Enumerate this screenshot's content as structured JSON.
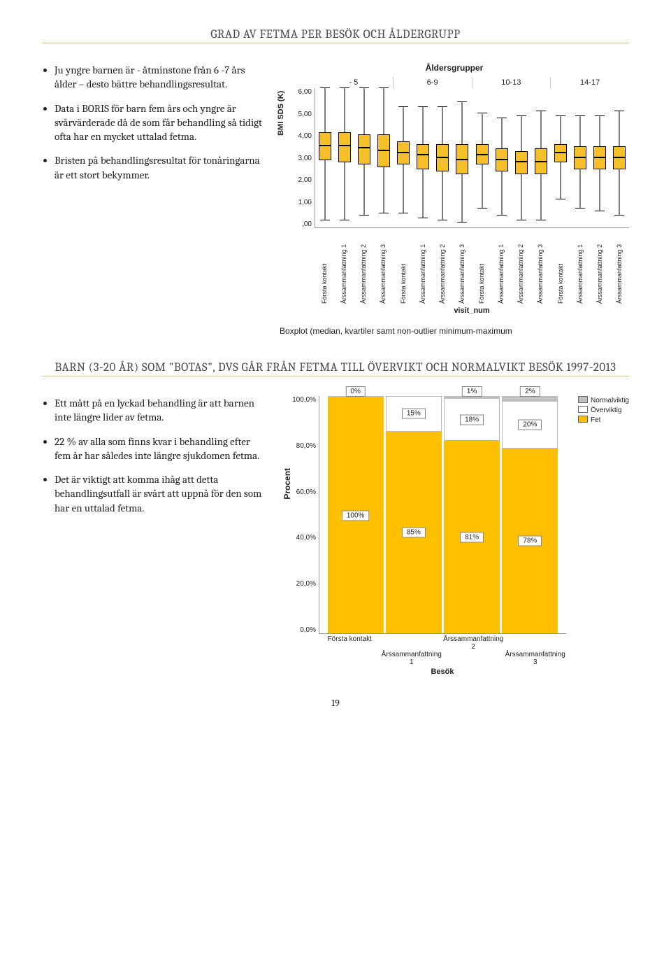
{
  "page_number": "19",
  "section1": {
    "title": "GRAD AV FETMA PER BESÖK OCH ÅLDERGRUPP",
    "bullets": [
      "Ju yngre barnen är - åtminstone från 6 -7 års ålder – desto bättre behandlingsresultat.",
      "Data i BORIS för barn fem års och yngre är svårvärderade då de som får behandling så tidigt ofta har en mycket uttalad fetma.",
      "Bristen på behandlingsresultat för tonåringarna är ett stort bekymmer."
    ]
  },
  "boxplot": {
    "title": "Åldersgrupper",
    "ylabel": "BMI SDS (K)",
    "ylim": [
      0,
      6
    ],
    "yticks": [
      ",00",
      "1,00",
      "2,00",
      "3,00",
      "4,00",
      "5,00",
      "6,00"
    ],
    "xtitle": "visit_num",
    "xtick_labels": [
      "Första kontakt",
      "Årssammanfattning 1",
      "Årssammanfattning 2",
      "Årssammanfattning 3"
    ],
    "box_fill": "#f5c029",
    "groups": [
      {
        "label": "- 5",
        "boxes": [
          {
            "min": 0.3,
            "q1": 2.9,
            "med": 3.5,
            "q3": 4.1,
            "max": 6.0
          },
          {
            "min": 0.3,
            "q1": 2.8,
            "med": 3.5,
            "q3": 4.1,
            "max": 6.0
          },
          {
            "min": 0.5,
            "q1": 2.7,
            "med": 3.4,
            "q3": 4.0,
            "max": 6.0
          },
          {
            "min": 0.6,
            "q1": 2.6,
            "med": 3.3,
            "q3": 4.0,
            "max": 6.0
          }
        ]
      },
      {
        "label": "6-9",
        "boxes": [
          {
            "min": 0.6,
            "q1": 2.7,
            "med": 3.2,
            "q3": 3.7,
            "max": 5.2
          },
          {
            "min": 0.4,
            "q1": 2.5,
            "med": 3.1,
            "q3": 3.6,
            "max": 5.2
          },
          {
            "min": 0.3,
            "q1": 2.4,
            "med": 3.0,
            "q3": 3.6,
            "max": 5.2
          },
          {
            "min": 0.2,
            "q1": 2.3,
            "med": 2.9,
            "q3": 3.6,
            "max": 5.4
          }
        ]
      },
      {
        "label": "10-13",
        "boxes": [
          {
            "min": 0.8,
            "q1": 2.7,
            "med": 3.1,
            "q3": 3.6,
            "max": 4.9
          },
          {
            "min": 0.5,
            "q1": 2.4,
            "med": 2.9,
            "q3": 3.4,
            "max": 4.7
          },
          {
            "min": 0.3,
            "q1": 2.3,
            "med": 2.8,
            "q3": 3.3,
            "max": 4.8
          },
          {
            "min": 0.3,
            "q1": 2.3,
            "med": 2.8,
            "q3": 3.4,
            "max": 5.0
          }
        ]
      },
      {
        "label": "14-17",
        "boxes": [
          {
            "min": 1.2,
            "q1": 2.8,
            "med": 3.2,
            "q3": 3.6,
            "max": 4.8
          },
          {
            "min": 0.8,
            "q1": 2.5,
            "med": 3.0,
            "q3": 3.5,
            "max": 4.8
          },
          {
            "min": 0.7,
            "q1": 2.5,
            "med": 3.0,
            "q3": 3.5,
            "max": 4.8
          },
          {
            "min": 0.5,
            "q1": 2.5,
            "med": 3.0,
            "q3": 3.5,
            "max": 5.0
          }
        ]
      }
    ],
    "caption": "Boxplot (median, kvartiler samt non-outlier minimum-maximum"
  },
  "section2": {
    "title": "BARN (3-20 ÅR) SOM \"BOTAS\", DVS GÅR FRÅN FETMA TILL ÖVERVIKT OCH NORMALVIKT BESÖK 1997-2013",
    "bullets": [
      "Ett mått på en lyckad behandling är att barnen inte längre lider av fetma.",
      "22 % av alla som finns kvar i behandling efter fem år har således inte längre sjukdomen fetma.",
      "Det är viktigt att komma ihåg att detta behandlingsutfall är svårt att uppnå för den som har en uttalad fetma."
    ]
  },
  "stacked": {
    "ylabel": "Procent",
    "yticks": [
      "0,0%",
      "20,0%",
      "40,0%",
      "60,0%",
      "80,0%",
      "100,0%"
    ],
    "xticks1": [
      "Första kontakt",
      "",
      "Årssammanfattning 2",
      ""
    ],
    "xticks2": [
      "",
      "Årssammanfattning 1",
      "",
      "Årssammanfattning 3"
    ],
    "xtitle": "Besök",
    "legend": [
      {
        "label": "Normalviktig",
        "color": "#bfbfbf"
      },
      {
        "label": "Överviktig",
        "color": "#ffffff"
      },
      {
        "label": "Fet",
        "color": "#ffc000"
      }
    ],
    "bars": [
      {
        "fet": 100,
        "over": 0,
        "norm": 0,
        "fet_lbl": "100%",
        "over_lbl": "",
        "norm_lbl": "0%"
      },
      {
        "fet": 85,
        "over": 15,
        "norm": 0,
        "fet_lbl": "85%",
        "over_lbl": "15%",
        "norm_lbl": ""
      },
      {
        "fet": 81,
        "over": 18,
        "norm": 1,
        "fet_lbl": "81%",
        "over_lbl": "18%",
        "norm_lbl": "1%"
      },
      {
        "fet": 78,
        "over": 20,
        "norm": 2,
        "fet_lbl": "78%",
        "over_lbl": "20%",
        "norm_lbl": "2%"
      }
    ]
  }
}
